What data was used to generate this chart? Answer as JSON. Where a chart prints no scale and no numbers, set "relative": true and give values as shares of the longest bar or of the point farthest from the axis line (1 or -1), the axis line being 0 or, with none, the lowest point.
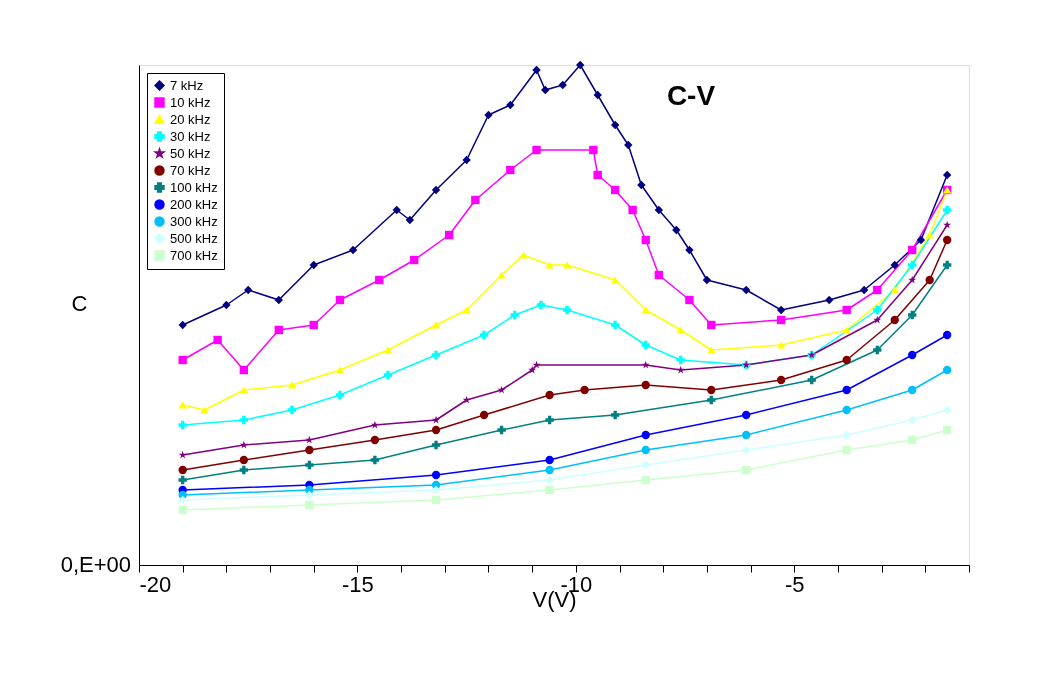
{
  "chart_data": {
    "type": "line",
    "title": "C-V",
    "xlabel": "V(V)",
    "ylabel": "C",
    "relative": true,
    "annotations": [
      "0,E+00"
    ],
    "xlim": [
      -20,
      -1
    ],
    "xticks": [
      -20,
      {
        "value": -19,
        "label": null
      },
      {
        "value": -18,
        "label": null
      },
      {
        "value": -17,
        "label": null
      },
      {
        "value": -16,
        "label": null
      },
      -15,
      {
        "value": -14,
        "label": null
      },
      {
        "value": -13,
        "label": null
      },
      {
        "value": -12,
        "label": null
      },
      {
        "value": -11,
        "label": null
      },
      -10,
      {
        "value": -9,
        "label": null
      },
      {
        "value": -8,
        "label": null
      },
      {
        "value": -7,
        "label": null
      },
      {
        "value": -6,
        "label": null
      },
      -5,
      {
        "value": -4,
        "label": null
      },
      {
        "value": -3,
        "label": null
      },
      {
        "value": -2,
        "label": null
      },
      {
        "value": -1,
        "label": null
      }
    ],
    "grid": false,
    "legend": "top left",
    "line_style": "solid",
    "series": [
      {
        "name": "7 kHz",
        "color": "#000080",
        "marker": "diamond",
        "x": [
          -19,
          -18,
          -17.5,
          -16.8,
          -16,
          -15.1,
          -14.1,
          -13.8,
          -13.2,
          -12.5,
          -12,
          -11.5,
          -10.9,
          -10.7,
          -10.3,
          -9.9,
          -9.5,
          -9.1,
          -8.8,
          -8.5,
          -8.1,
          -7.7,
          -7.4,
          -7.0,
          -6.1,
          -5.3,
          -4.2,
          -3.4,
          -2.7,
          -2.1,
          -1.5
        ],
        "values": [
          0.48,
          0.52,
          0.55,
          0.53,
          0.6,
          0.63,
          0.71,
          0.69,
          0.75,
          0.81,
          0.9,
          0.92,
          0.99,
          0.95,
          0.96,
          1.0,
          0.94,
          0.88,
          0.84,
          0.76,
          0.71,
          0.67,
          0.63,
          0.57,
          0.55,
          0.51,
          0.53,
          0.55,
          0.6,
          0.65,
          0.78
        ]
      },
      {
        "name": "10 kHz",
        "color": "#ff00ff",
        "marker": "square",
        "x": [
          -19,
          -18.2,
          -17.6,
          -16.8,
          -16,
          -15.4,
          -14.5,
          -13.7,
          -12.9,
          -12.3,
          -11.5,
          -10.9,
          -9.6,
          -9.5,
          -9.1,
          -8.7,
          -8.4,
          -8.1,
          -7.4,
          -6.9,
          -5.3,
          -3.8,
          -3.1,
          -2.3,
          -1.5
        ],
        "values": [
          0.41,
          0.45,
          0.39,
          0.47,
          0.48,
          0.53,
          0.57,
          0.61,
          0.66,
          0.73,
          0.79,
          0.83,
          0.83,
          0.78,
          0.75,
          0.71,
          0.65,
          0.58,
          0.53,
          0.48,
          0.49,
          0.51,
          0.55,
          0.63,
          0.75
        ]
      },
      {
        "name": "20 kHz",
        "color": "#ffff00",
        "marker": "triangle",
        "x": [
          -19,
          -18.5,
          -17.6,
          -16.5,
          -15.4,
          -14.3,
          -13.2,
          -12.5,
          -11.7,
          -11.2,
          -10.6,
          -10.2,
          -9.1,
          -8.4,
          -7.6,
          -6.9,
          -5.3,
          -3.8,
          -2.7,
          -1.9,
          -1.5
        ],
        "values": [
          0.32,
          0.31,
          0.35,
          0.36,
          0.39,
          0.43,
          0.48,
          0.51,
          0.58,
          0.62,
          0.6,
          0.6,
          0.57,
          0.51,
          0.47,
          0.43,
          0.44,
          0.47,
          0.55,
          0.66,
          0.75
        ]
      },
      {
        "name": "30 kHz",
        "color": "#00ffff",
        "marker": "cross",
        "x": [
          -19,
          -17.6,
          -16.5,
          -15.4,
          -14.3,
          -13.2,
          -12.1,
          -11.4,
          -10.8,
          -10.2,
          -9.1,
          -8.4,
          -7.6,
          -6.1,
          -4.6,
          -3.1,
          -2.3,
          -1.5
        ],
        "values": [
          0.28,
          0.29,
          0.31,
          0.34,
          0.38,
          0.42,
          0.46,
          0.5,
          0.52,
          0.51,
          0.48,
          0.44,
          0.41,
          0.4,
          0.42,
          0.51,
          0.6,
          0.71
        ]
      },
      {
        "name": "50 kHz",
        "color": "#800080",
        "marker": "star",
        "x": [
          -19,
          -17.6,
          -16.1,
          -14.6,
          -13.2,
          -12.5,
          -11.7,
          -11.0,
          -10.9,
          -8.4,
          -7.6,
          -6.1,
          -4.6,
          -3.1,
          -2.3,
          -1.5
        ],
        "values": [
          0.22,
          0.24,
          0.25,
          0.28,
          0.29,
          0.33,
          0.35,
          0.39,
          0.4,
          0.4,
          0.39,
          0.4,
          0.42,
          0.49,
          0.57,
          0.68
        ]
      },
      {
        "name": "70 kHz",
        "color": "#800000",
        "marker": "circle",
        "x": [
          -19,
          -17.6,
          -16.1,
          -14.6,
          -13.2,
          -12.1,
          -10.6,
          -9.8,
          -8.4,
          -6.9,
          -5.3,
          -3.8,
          -2.7,
          -1.9,
          -1.5
        ],
        "values": [
          0.19,
          0.21,
          0.23,
          0.25,
          0.27,
          0.3,
          0.34,
          0.35,
          0.36,
          0.35,
          0.37,
          0.41,
          0.49,
          0.57,
          0.65
        ]
      },
      {
        "name": "100 kHz",
        "color": "#008080",
        "marker": "cross",
        "x": [
          -19,
          -17.6,
          -16.1,
          -14.6,
          -13.2,
          -11.7,
          -10.6,
          -9.1,
          -6.9,
          -4.6,
          -3.1,
          -2.3,
          -1.5
        ],
        "values": [
          0.17,
          0.19,
          0.2,
          0.21,
          0.24,
          0.27,
          0.29,
          0.3,
          0.33,
          0.37,
          0.43,
          0.5,
          0.6
        ]
      },
      {
        "name": "200 kHz",
        "color": "#0000ff",
        "marker": "circle",
        "x": [
          -19,
          -16.1,
          -13.2,
          -10.6,
          -8.4,
          -6.1,
          -3.8,
          -2.3,
          -1.5
        ],
        "values": [
          0.15,
          0.16,
          0.18,
          0.21,
          0.26,
          0.3,
          0.35,
          0.42,
          0.46
        ]
      },
      {
        "name": "300 kHz",
        "color": "#00bfff",
        "marker": "circle",
        "x": [
          -19,
          -16.1,
          -13.2,
          -10.6,
          -8.4,
          -6.1,
          -3.8,
          -2.3,
          -1.5
        ],
        "values": [
          0.14,
          0.15,
          0.16,
          0.19,
          0.23,
          0.26,
          0.31,
          0.35,
          0.39
        ]
      },
      {
        "name": "500 kHz",
        "color": "#ccffff",
        "marker": "diamond",
        "x": [
          -19,
          -16.1,
          -13.2,
          -10.6,
          -8.4,
          -6.1,
          -3.8,
          -2.3,
          -1.5
        ],
        "values": [
          0.13,
          0.14,
          0.15,
          0.17,
          0.2,
          0.23,
          0.26,
          0.29,
          0.31
        ]
      },
      {
        "name": "700 kHz",
        "color": "#ccffcc",
        "marker": "square",
        "x": [
          -19,
          -16.1,
          -13.2,
          -10.6,
          -8.4,
          -6.1,
          -3.8,
          -2.3,
          -1.5
        ],
        "values": [
          0.11,
          0.12,
          0.13,
          0.15,
          0.17,
          0.19,
          0.23,
          0.25,
          0.27
        ]
      }
    ]
  }
}
